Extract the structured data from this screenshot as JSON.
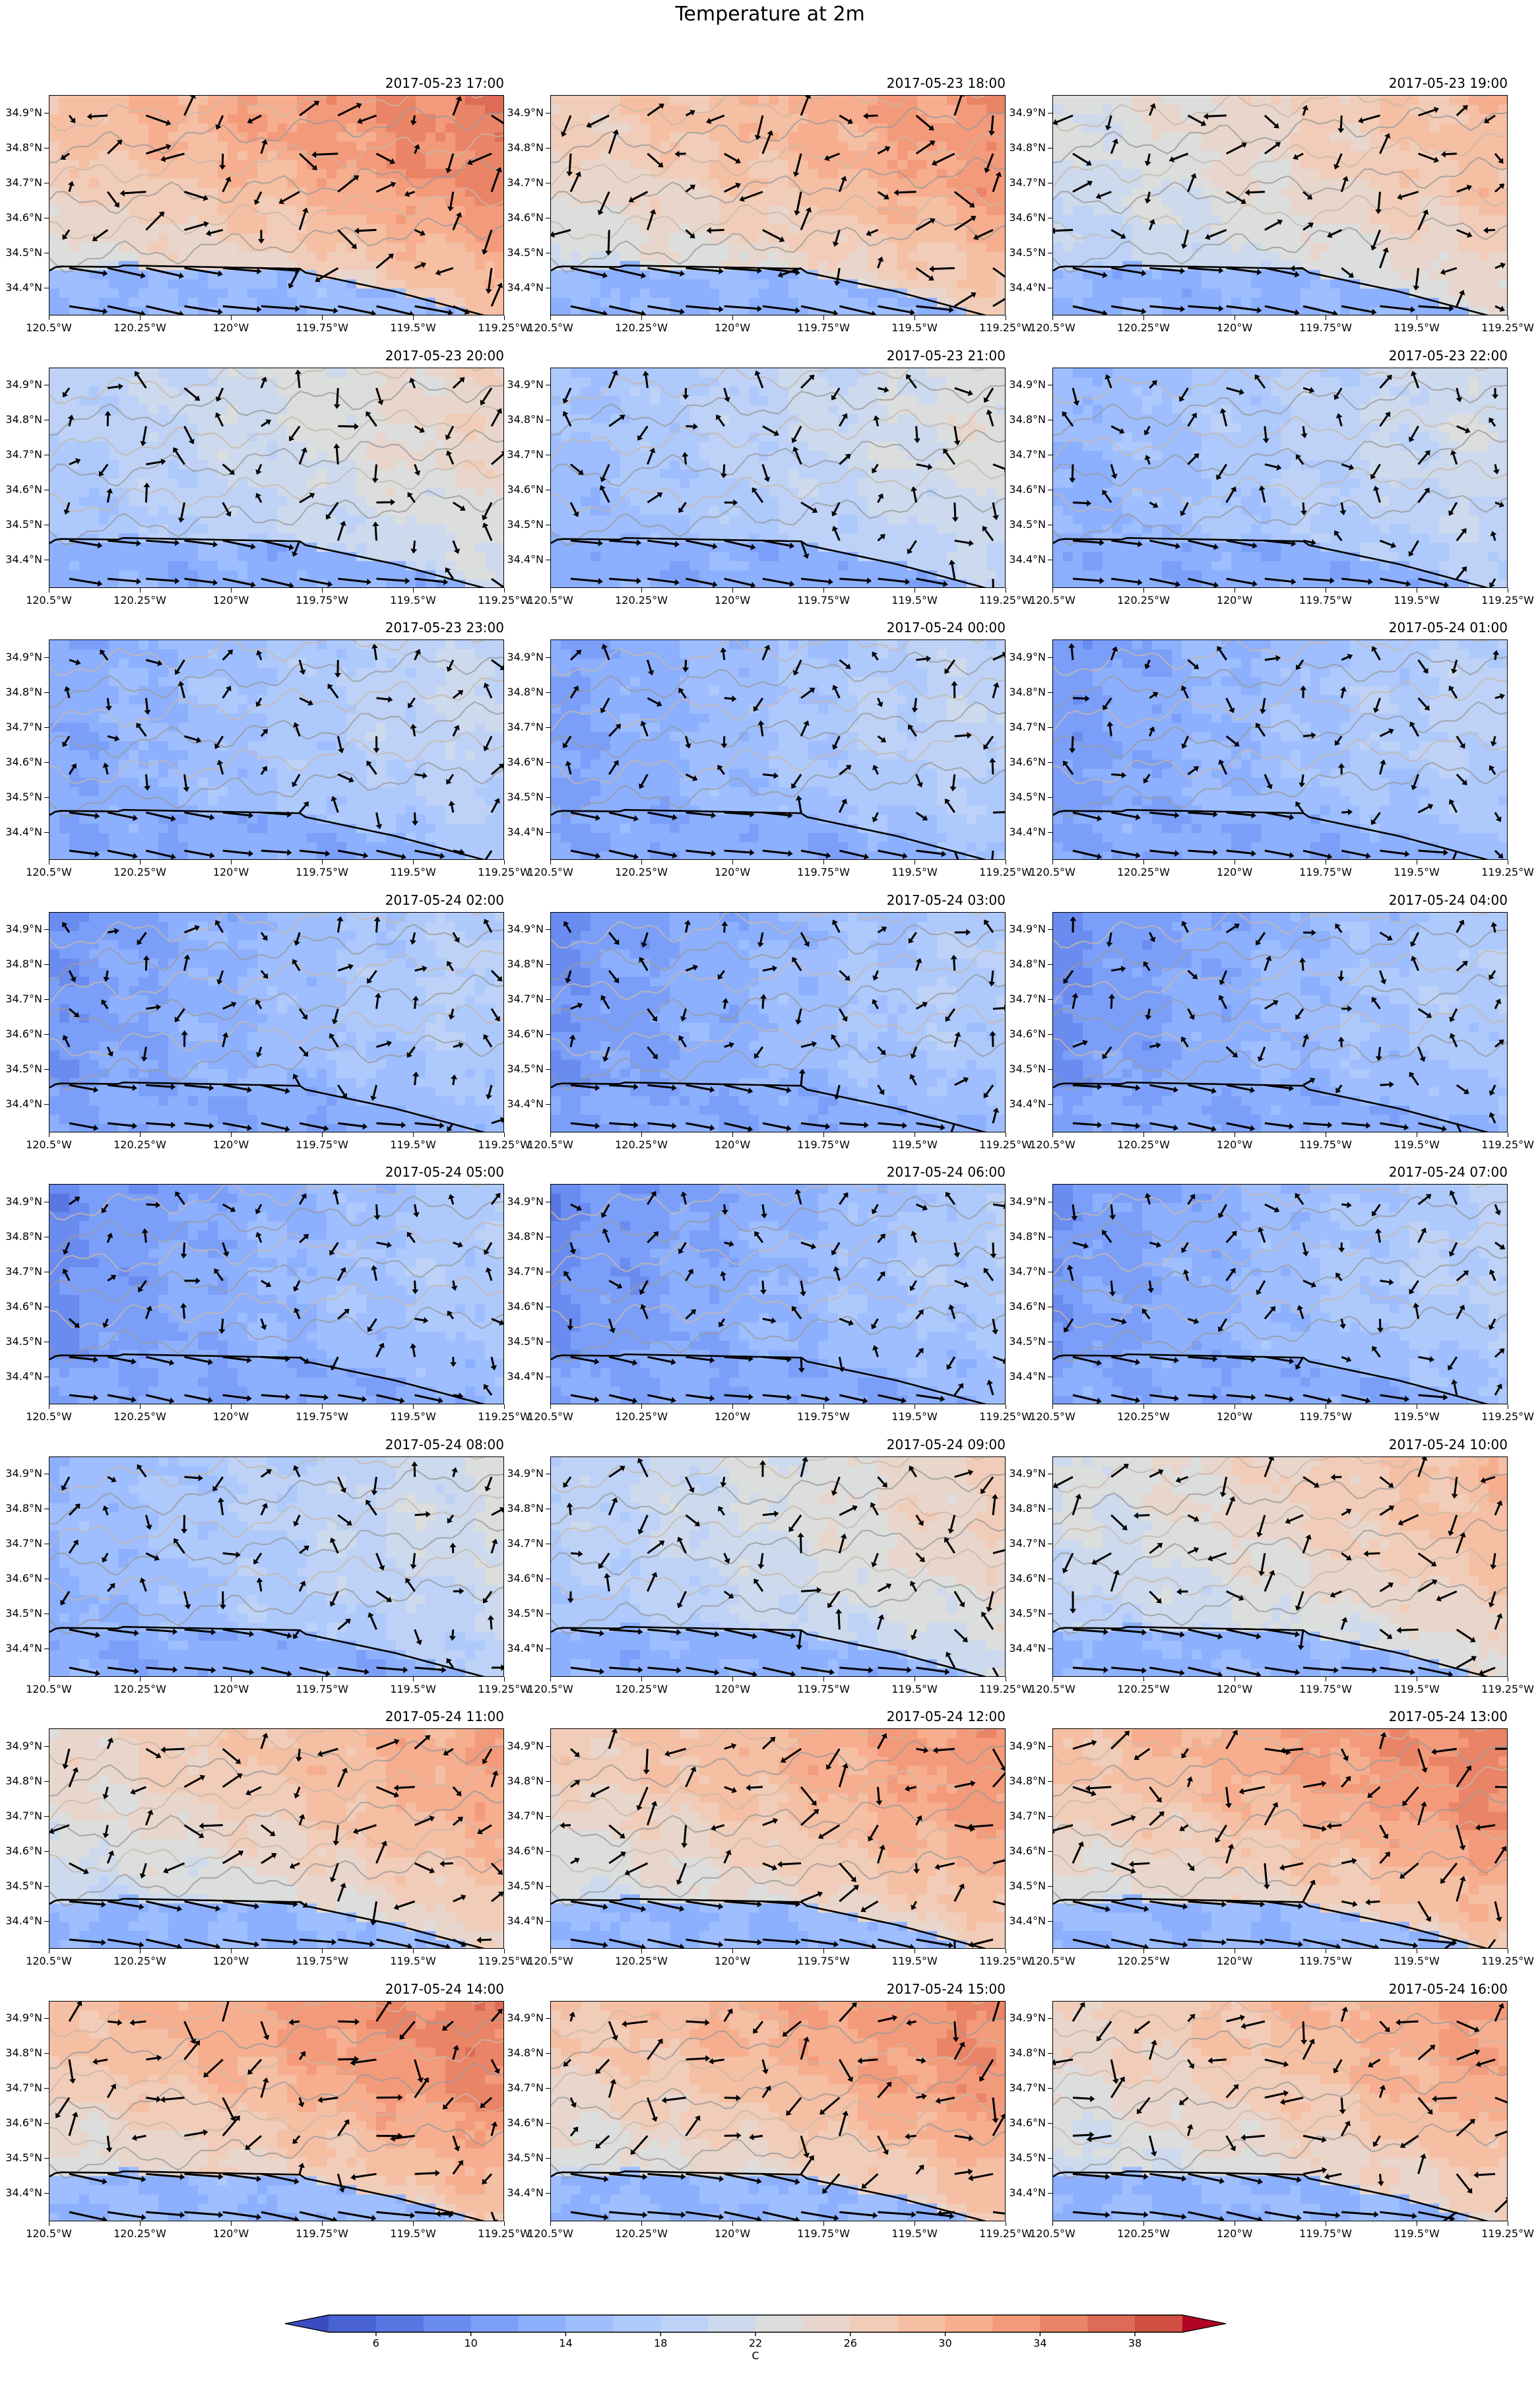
{
  "figure": {
    "title": "Temperature at 2m"
  },
  "chart_data": {
    "type": "heatmap",
    "variable": "Temperature at 2m",
    "colorbar": {
      "unit_label": "C",
      "levels": [
        4,
        6,
        8,
        10,
        12,
        14,
        16,
        18,
        20,
        22,
        24,
        26,
        28,
        30,
        32,
        34,
        36,
        38,
        40
      ],
      "tick_labels": [
        "6",
        "10",
        "14",
        "18",
        "22",
        "26",
        "30",
        "34",
        "38"
      ],
      "tick_values": [
        6,
        10,
        14,
        18,
        22,
        26,
        30,
        34,
        38
      ],
      "extend": "both",
      "colormap": "coolwarm"
    },
    "axes": {
      "x_ticks": [
        "120.5°W",
        "120.25°W",
        "120°W",
        "119.75°W",
        "119.5°W",
        "119.25°W"
      ],
      "x_values": [
        -120.5,
        -120.25,
        -120.0,
        -119.75,
        -119.5,
        -119.25
      ],
      "y_ticks": [
        "34.4°N",
        "34.5°N",
        "34.6°N",
        "34.7°N",
        "34.8°N",
        "34.9°N"
      ],
      "y_values": [
        34.4,
        34.5,
        34.6,
        34.7,
        34.8,
        34.9
      ],
      "xlim": [
        -120.5,
        -119.25
      ],
      "ylim": [
        34.32,
        34.95
      ]
    },
    "panels": [
      {
        "time": "2017-05-23 17:00",
        "warmth": 0.8
      },
      {
        "time": "2017-05-23 18:00",
        "warmth": 0.72
      },
      {
        "time": "2017-05-23 19:00",
        "warmth": 0.55
      },
      {
        "time": "2017-05-23 20:00",
        "warmth": 0.4
      },
      {
        "time": "2017-05-23 21:00",
        "warmth": 0.3
      },
      {
        "time": "2017-05-23 22:00",
        "warmth": 0.24
      },
      {
        "time": "2017-05-23 23:00",
        "warmth": 0.18
      },
      {
        "time": "2017-05-24 00:00",
        "warmth": 0.15
      },
      {
        "time": "2017-05-24 01:00",
        "warmth": 0.12
      },
      {
        "time": "2017-05-24 02:00",
        "warmth": 0.1
      },
      {
        "time": "2017-05-24 03:00",
        "warmth": 0.08
      },
      {
        "time": "2017-05-24 04:00",
        "warmth": 0.07
      },
      {
        "time": "2017-05-24 05:00",
        "warmth": 0.06
      },
      {
        "time": "2017-05-24 06:00",
        "warmth": 0.06
      },
      {
        "time": "2017-05-24 07:00",
        "warmth": 0.1
      },
      {
        "time": "2017-05-24 08:00",
        "warmth": 0.25
      },
      {
        "time": "2017-05-24 09:00",
        "warmth": 0.42
      },
      {
        "time": "2017-05-24 10:00",
        "warmth": 0.55
      },
      {
        "time": "2017-05-24 11:00",
        "warmth": 0.65
      },
      {
        "time": "2017-05-24 12:00",
        "warmth": 0.72
      },
      {
        "time": "2017-05-24 13:00",
        "warmth": 0.78
      },
      {
        "time": "2017-05-24 14:00",
        "warmth": 0.8
      },
      {
        "time": "2017-05-24 15:00",
        "warmth": 0.76
      },
      {
        "time": "2017-05-24 16:00",
        "warmth": 0.68
      }
    ]
  }
}
